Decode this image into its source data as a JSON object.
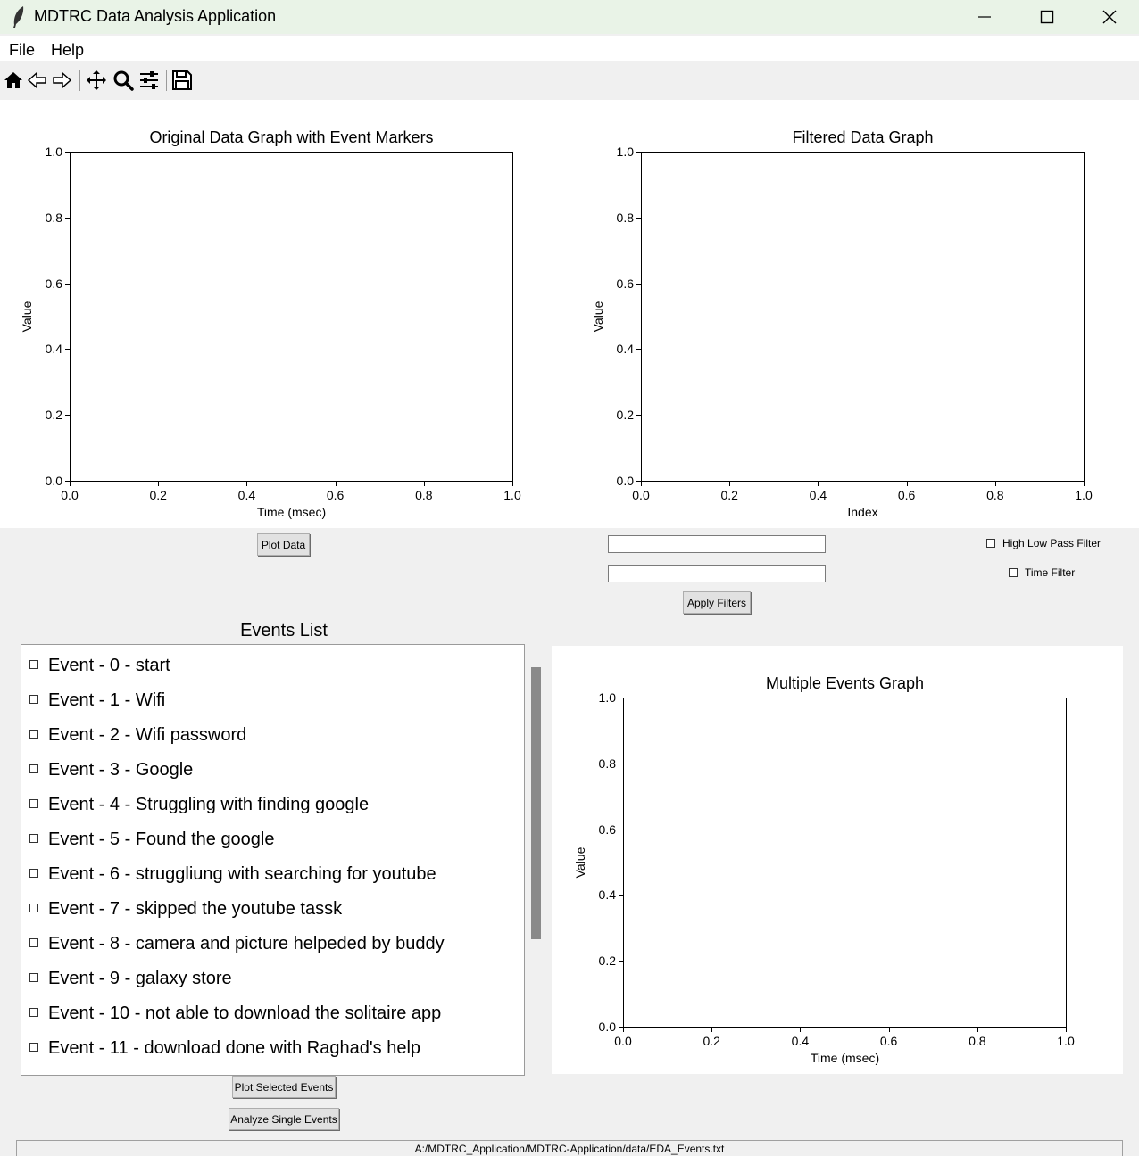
{
  "window": {
    "title": "MDTRC Data Analysis Application"
  },
  "menu": {
    "file": "File",
    "help": "Help"
  },
  "toolbar": {
    "icons": [
      "home-icon",
      "back-icon",
      "forward-icon",
      "pan-icon",
      "zoom-icon",
      "configure-icon",
      "save-icon"
    ]
  },
  "chart_data": [
    {
      "type": "line",
      "title": "Original Data Graph with Event Markers",
      "xlabel": "Time (msec)",
      "ylabel": "Value",
      "xlim": [
        0.0,
        1.0
      ],
      "ylim": [
        0.0,
        1.0
      ],
      "x_ticks": [
        "0.0",
        "0.2",
        "0.4",
        "0.6",
        "0.8",
        "1.0"
      ],
      "y_ticks": [
        "0.0",
        "0.2",
        "0.4",
        "0.6",
        "0.8",
        "1.0"
      ],
      "series": []
    },
    {
      "type": "line",
      "title": "Filtered Data Graph",
      "xlabel": "Index",
      "ylabel": "Value",
      "xlim": [
        0.0,
        1.0
      ],
      "ylim": [
        0.0,
        1.0
      ],
      "x_ticks": [
        "0.0",
        "0.2",
        "0.4",
        "0.6",
        "0.8",
        "1.0"
      ],
      "y_ticks": [
        "0.0",
        "0.2",
        "0.4",
        "0.6",
        "0.8",
        "1.0"
      ],
      "series": []
    },
    {
      "type": "line",
      "title": "Multiple Events Graph",
      "xlabel": "Time (msec)",
      "ylabel": "Value",
      "xlim": [
        0.0,
        1.0
      ],
      "ylim": [
        0.0,
        1.0
      ],
      "x_ticks": [
        "0.0",
        "0.2",
        "0.4",
        "0.6",
        "0.8",
        "1.0"
      ],
      "y_ticks": [
        "0.0",
        "0.2",
        "0.4",
        "0.6",
        "0.8",
        "1.0"
      ],
      "series": []
    }
  ],
  "controls": {
    "plot_data": "Plot Data",
    "filter_input_1": "",
    "filter_input_2": "",
    "high_low_pass_filter": "High Low Pass Filter",
    "time_filter": "Time Filter",
    "apply_filters": "Apply Filters"
  },
  "events": {
    "heading": "Events List",
    "items": [
      "Event - 0 - start",
      "Event - 1 - Wifi",
      "Event - 2 - Wifi password",
      "Event - 3 - Google",
      "Event - 4 - Struggling with finding google",
      "Event - 5 - Found the google",
      "Event - 6 - struggliung with searching for youtube",
      "Event - 7 - skipped the youtube tassk",
      "Event - 8 - camera and picture helpeded by buddy",
      "Event - 9 - galaxy store",
      "Event - 10 - not able to download the solitaire app",
      "Event - 11 - download done with Raghad's help"
    ],
    "plot_selected": "Plot Selected Events",
    "analyze_single": "Analyze Single Events"
  },
  "status": {
    "path": "A:/MDTRC_Application/MDTRC-Application/data/EDA_Events.txt"
  }
}
